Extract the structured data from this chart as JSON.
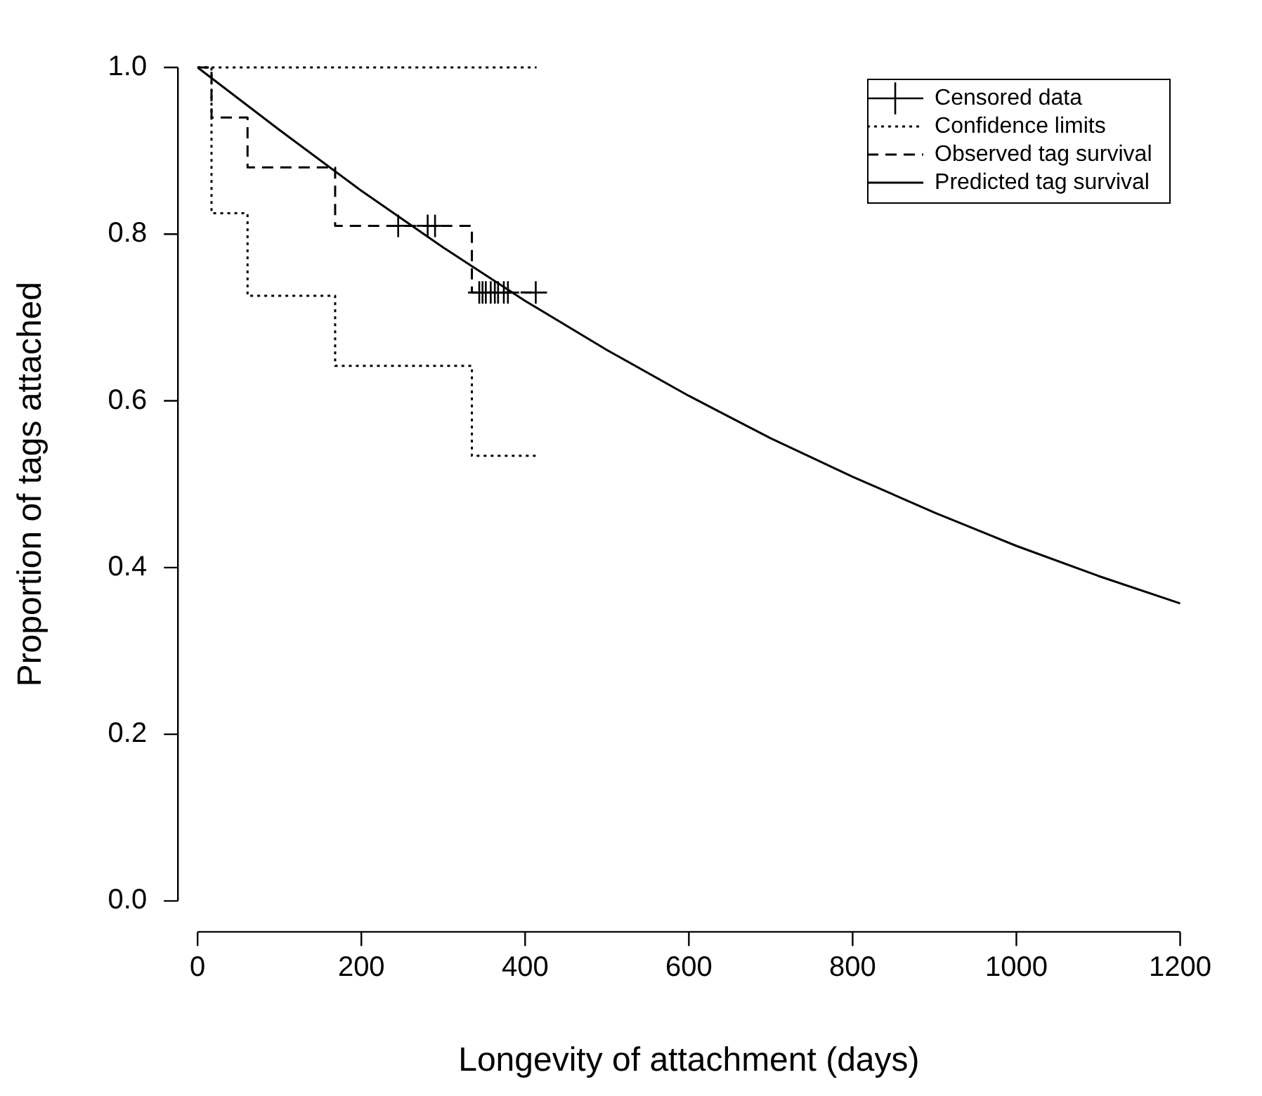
{
  "chart_data": {
    "type": "line",
    "xlabel": "Longevity of attachment (days)",
    "ylabel": "Proportion of tags attached",
    "xlim": [
      0,
      1200
    ],
    "xticks": [
      0,
      200,
      400,
      600,
      800,
      1000,
      1200
    ],
    "ylim": [
      0,
      1
    ],
    "yticks": [
      {
        "value": 0,
        "label": "0.0"
      },
      0.2,
      0.4,
      0.6,
      0.8,
      {
        "value": 1,
        "label": "1.0"
      }
    ],
    "grid": false,
    "legend": "top right",
    "series": [
      {
        "name": "Censored data",
        "type": "scatter",
        "marker": "cross",
        "color": "#000000",
        "x": [
          245,
          281,
          290,
          344,
          348,
          352,
          358,
          363,
          367,
          374,
          379,
          413
        ],
        "values": [
          0.81,
          0.81,
          0.81,
          0.73,
          0.73,
          0.73,
          0.73,
          0.73,
          0.73,
          0.73,
          0.73,
          0.73
        ]
      },
      {
        "name": "Confidence limits",
        "type": "step",
        "line_style": "dotted",
        "color": "#000000",
        "x": [
          0,
          17,
          61,
          168,
          335,
          414
        ],
        "values": [
          1,
          0.825,
          0.726,
          0.642,
          0.534,
          0.534
        ]
      },
      {
        "type": "step",
        "line_style": "dotted",
        "color": "#000000",
        "x": [
          0,
          414
        ],
        "values": [
          1,
          1
        ]
      },
      {
        "name": "Observed tag survival",
        "type": "step",
        "line_style": "dashed",
        "color": "#000000",
        "x": [
          0,
          17,
          61,
          168,
          335,
          414
        ],
        "values": [
          1,
          0.94,
          0.88,
          0.81,
          0.73,
          0.73
        ]
      },
      {
        "name": "Predicted tag survival",
        "line_style": "solid",
        "color": "#000000",
        "x": [
          0,
          100,
          200,
          300,
          400,
          500,
          600,
          700,
          800,
          900,
          1000,
          1100,
          1200
        ],
        "values": [
          1,
          0.925,
          0.852,
          0.784,
          0.72,
          0.661,
          0.606,
          0.555,
          0.509,
          0.466,
          0.426,
          0.39,
          0.357
        ]
      }
    ]
  }
}
